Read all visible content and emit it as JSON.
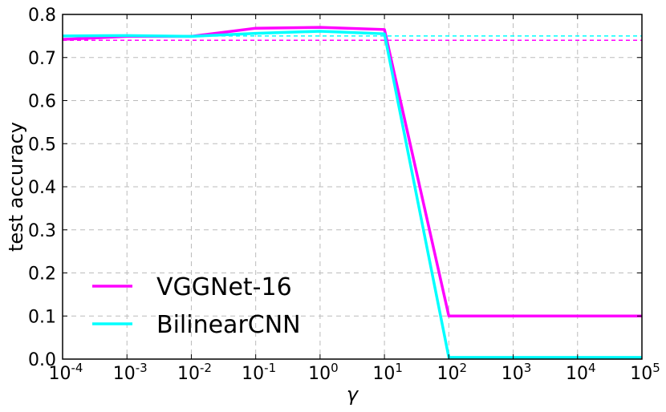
{
  "chart_data": {
    "type": "line",
    "xscale": "log",
    "xlabel": "γ",
    "ylabel": "test accuracy",
    "x": [
      0.0001,
      0.001,
      0.01,
      0.1,
      1,
      10,
      100,
      1000,
      10000,
      100000
    ],
    "x_tick_labels": [
      {
        "base": "10",
        "exp": "-4"
      },
      {
        "base": "10",
        "exp": "-3"
      },
      {
        "base": "10",
        "exp": "-2"
      },
      {
        "base": "10",
        "exp": "-1"
      },
      {
        "base": "10",
        "exp": "0"
      },
      {
        "base": "10",
        "exp": "1"
      },
      {
        "base": "10",
        "exp": "2"
      },
      {
        "base": "10",
        "exp": "3"
      },
      {
        "base": "10",
        "exp": "4"
      },
      {
        "base": "10",
        "exp": "5"
      }
    ],
    "y_ticks": [
      0.0,
      0.1,
      0.2,
      0.3,
      0.4,
      0.5,
      0.6,
      0.7,
      0.8
    ],
    "y_tick_labels": [
      "0.0",
      "0.1",
      "0.2",
      "0.3",
      "0.4",
      "0.5",
      "0.6",
      "0.7",
      "0.8"
    ],
    "xlim": [
      0.0001,
      100000
    ],
    "ylim": [
      0.0,
      0.8
    ],
    "grid": true,
    "legend_position": "lower-left",
    "series": [
      {
        "name": "VGGNet-16",
        "color": "#ff00ff",
        "x": [
          0.0001,
          0.001,
          0.01,
          0.1,
          1,
          10,
          100,
          1000,
          10000,
          100000
        ],
        "values": [
          0.742,
          0.749,
          0.749,
          0.768,
          0.77,
          0.765,
          0.1,
          0.1,
          0.1,
          0.1
        ],
        "baseline": 0.74
      },
      {
        "name": "BilinearCNN",
        "color": "#00ffff",
        "x": [
          0.0001,
          0.001,
          0.01,
          0.1,
          1,
          10,
          100,
          1000,
          10000,
          100000
        ],
        "values": [
          0.75,
          0.751,
          0.749,
          0.756,
          0.761,
          0.755,
          0.004,
          0.004,
          0.004,
          0.004
        ],
        "baseline": 0.75
      }
    ]
  }
}
